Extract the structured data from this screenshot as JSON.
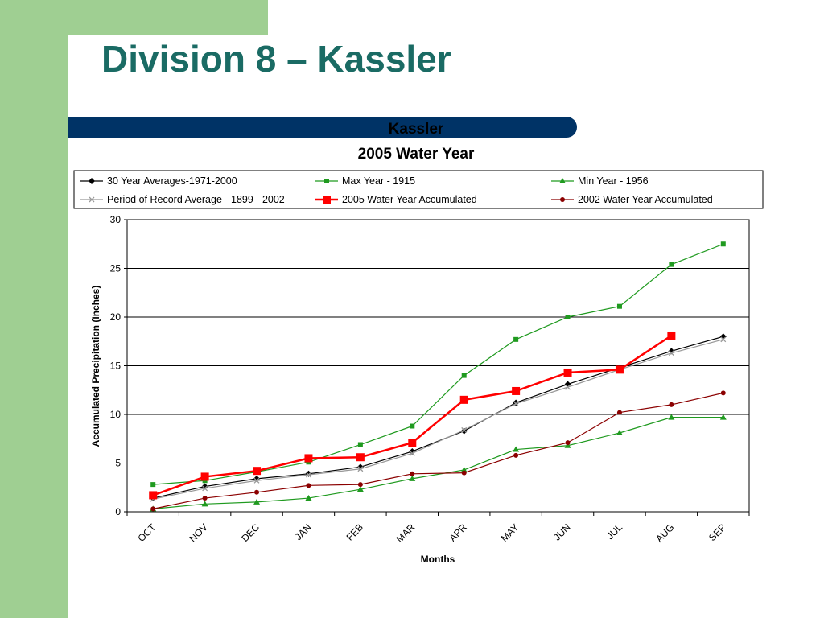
{
  "page": {
    "title": "Division 8 – Kassler"
  },
  "colors": {
    "sidebar": "#9fcf92",
    "title_text": "#1a6b64",
    "title_bar": "#003366"
  },
  "chart_data": {
    "type": "line",
    "title": "Kassler",
    "subtitle": "2005 Water Year",
    "xlabel": "Months",
    "ylabel": "Accumulated Precipitation (Inches)",
    "ylim": [
      0,
      30
    ],
    "yticks": [
      "0",
      "5",
      "10",
      "15",
      "20",
      "25",
      "30"
    ],
    "grid": "horizontal",
    "legend_position": "top",
    "categories": [
      "OCT",
      "NOV",
      "DEC",
      "JAN",
      "FEB",
      "MAR",
      "APR",
      "MAY",
      "JUN",
      "JUL",
      "AUG",
      "SEP"
    ],
    "series": [
      {
        "name": "30 Year Averages-1971-2000",
        "color": "#000000",
        "marker": "diamond",
        "values": [
          1.4,
          2.6,
          3.4,
          3.9,
          4.6,
          6.2,
          8.3,
          11.2,
          13.1,
          14.8,
          16.5,
          18.0
        ]
      },
      {
        "name": "Max Year - 1915",
        "color": "#1f9a1f",
        "marker": "square",
        "values": [
          2.8,
          3.2,
          4.1,
          5.1,
          6.9,
          8.8,
          14.0,
          17.7,
          20.0,
          21.1,
          25.4,
          27.5
        ]
      },
      {
        "name": "Min Year - 1956",
        "color": "#1f9a1f",
        "marker": "triangle",
        "values": [
          0.3,
          0.8,
          1.0,
          1.4,
          2.3,
          3.4,
          4.3,
          6.4,
          6.8,
          8.1,
          9.7,
          9.7
        ]
      },
      {
        "name": "Period of Record Average - 1899 - 2002",
        "color": "#999999",
        "marker": "x",
        "values": [
          1.3,
          2.4,
          3.2,
          3.8,
          4.4,
          6.0,
          8.4,
          11.1,
          12.8,
          14.6,
          16.3,
          17.7
        ]
      },
      {
        "name": "2005 Water Year Accumulated",
        "color": "#ff0000",
        "marker": "bigsquare",
        "values": [
          1.7,
          3.6,
          4.2,
          5.5,
          5.6,
          7.1,
          11.5,
          12.4,
          14.3,
          14.6,
          18.1,
          null
        ]
      },
      {
        "name": "2002 Water Year Accumulated",
        "color": "#8b0000",
        "marker": "circle",
        "values": [
          0.3,
          1.4,
          2.0,
          2.7,
          2.8,
          3.9,
          4.0,
          5.8,
          7.1,
          10.2,
          11.0,
          12.2
        ]
      }
    ]
  }
}
